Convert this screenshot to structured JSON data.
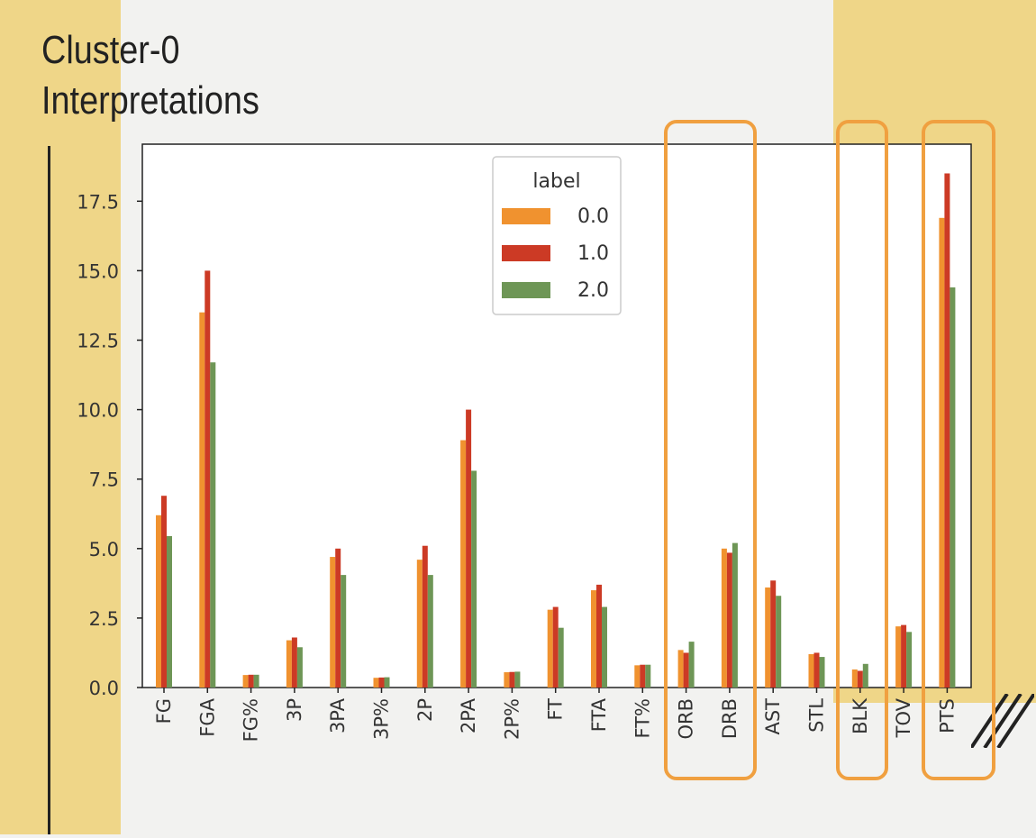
{
  "slide": {
    "title_line1": "Cluster-0",
    "title_line2": "Interpretations"
  },
  "colors": {
    "background": "#f2f2f0",
    "accent_band": "#efd688",
    "highlight_box": "#f0a040",
    "series_0": "#f0922f",
    "series_1": "#cc3a25",
    "series_2": "#6e9656"
  },
  "highlighted_categories": [
    "ORB",
    "DRB",
    "BLK",
    "PTS"
  ],
  "chart_data": {
    "type": "bar",
    "categories": [
      "FG",
      "FGA",
      "FG%",
      "3P",
      "3PA",
      "3P%",
      "2P",
      "2PA",
      "2P%",
      "FT",
      "FTA",
      "FT%",
      "ORB",
      "DRB",
      "AST",
      "STL",
      "BLK",
      "TOV",
      "PTS"
    ],
    "series": [
      {
        "name": "0.0",
        "values": [
          6.2,
          13.5,
          0.45,
          1.7,
          4.7,
          0.35,
          4.6,
          8.9,
          0.55,
          2.8,
          3.5,
          0.8,
          1.35,
          5.0,
          3.6,
          1.2,
          0.65,
          2.2,
          16.9
        ]
      },
      {
        "name": "1.0",
        "values": [
          6.9,
          15.0,
          0.46,
          1.8,
          5.0,
          0.36,
          5.1,
          10.0,
          0.56,
          2.9,
          3.7,
          0.82,
          1.25,
          4.85,
          3.85,
          1.25,
          0.6,
          2.25,
          18.5
        ]
      },
      {
        "name": "2.0",
        "values": [
          5.45,
          11.7,
          0.46,
          1.45,
          4.05,
          0.37,
          4.05,
          7.8,
          0.57,
          2.15,
          2.9,
          0.82,
          1.65,
          5.2,
          3.3,
          1.1,
          0.85,
          2.0,
          14.4
        ]
      }
    ],
    "legend_title": "label",
    "legend_position": "top-center",
    "yticks": [
      "0.0",
      "2.5",
      "5.0",
      "7.5",
      "10.0",
      "12.5",
      "15.0",
      "17.5"
    ],
    "ylim": [
      0,
      19.5
    ],
    "grid": false,
    "title": "",
    "xlabel": "",
    "ylabel": ""
  }
}
